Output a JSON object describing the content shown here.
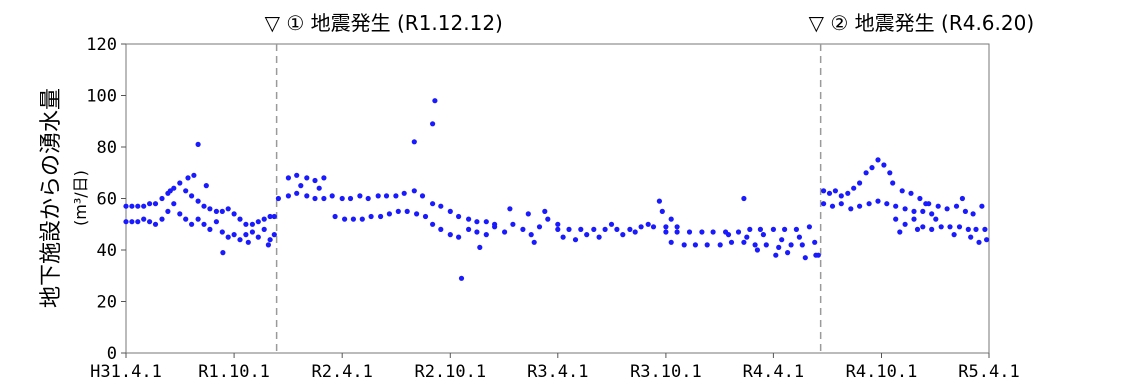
{
  "chart_data": {
    "type": "scatter",
    "title": "",
    "xlabel": "",
    "ylabel": "地下施設からの湧水量",
    "yunit": "(m³/日)",
    "ylim": [
      0,
      120
    ],
    "yticks": [
      0,
      20,
      40,
      60,
      80,
      100,
      120
    ],
    "x_range": [
      "2019-04-01",
      "2023-04-01"
    ],
    "xticks": [
      {
        "date": "2019-04-01",
        "label": "H31.4.1"
      },
      {
        "date": "2019-10-01",
        "label": "R1.10.1"
      },
      {
        "date": "2020-04-01",
        "label": "R2.4.1"
      },
      {
        "date": "2020-10-01",
        "label": "R2.10.1"
      },
      {
        "date": "2021-04-01",
        "label": "R3.4.1"
      },
      {
        "date": "2021-10-01",
        "label": "R3.10.1"
      },
      {
        "date": "2022-04-01",
        "label": "R4.4.1"
      },
      {
        "date": "2022-10-01",
        "label": "R4.10.1"
      },
      {
        "date": "2023-04-01",
        "label": "R5.4.1"
      }
    ],
    "grid": false,
    "legend": "none",
    "marker_color": "#1a1aff",
    "annotations": [
      {
        "date": "2019-12-12",
        "label": "▽ ① 地震発生 (R1.12.12)"
      },
      {
        "date": "2022-06-20",
        "label": "▽ ② 地震発生 (R4.6.20)"
      }
    ],
    "series": [
      {
        "points": [
          [
            "2019-04-01",
            57
          ],
          [
            "2019-04-11",
            57
          ],
          [
            "2019-04-21",
            57
          ],
          [
            "2019-05-01",
            57
          ],
          [
            "2019-05-11",
            58
          ],
          [
            "2019-05-21",
            58
          ],
          [
            "2019-06-01",
            60
          ],
          [
            "2019-06-11",
            62
          ],
          [
            "2019-06-21",
            64
          ],
          [
            "2019-07-01",
            66
          ],
          [
            "2019-07-11",
            63
          ],
          [
            "2019-07-21",
            61
          ],
          [
            "2019-08-01",
            59
          ],
          [
            "2019-08-11",
            57
          ],
          [
            "2019-08-21",
            56
          ],
          [
            "2019-09-01",
            55
          ],
          [
            "2019-09-11",
            55
          ],
          [
            "2019-09-21",
            56
          ],
          [
            "2019-10-01",
            54
          ],
          [
            "2019-10-11",
            52
          ],
          [
            "2019-10-21",
            50
          ],
          [
            "2019-11-01",
            50
          ],
          [
            "2019-11-11",
            51
          ],
          [
            "2019-11-21",
            52
          ],
          [
            "2019-12-01",
            53
          ],
          [
            "2019-12-08",
            53
          ],
          [
            "2019-04-01",
            51
          ],
          [
            "2019-04-11",
            51
          ],
          [
            "2019-04-21",
            51
          ],
          [
            "2019-05-01",
            52
          ],
          [
            "2019-05-11",
            51
          ],
          [
            "2019-05-21",
            50
          ],
          [
            "2019-06-01",
            52
          ],
          [
            "2019-06-11",
            55
          ],
          [
            "2019-06-21",
            58
          ],
          [
            "2019-07-01",
            54
          ],
          [
            "2019-07-11",
            52
          ],
          [
            "2019-07-21",
            50
          ],
          [
            "2019-08-01",
            52
          ],
          [
            "2019-08-11",
            50
          ],
          [
            "2019-08-21",
            48
          ],
          [
            "2019-09-01",
            51
          ],
          [
            "2019-09-11",
            47
          ],
          [
            "2019-09-21",
            45
          ],
          [
            "2019-10-01",
            46
          ],
          [
            "2019-10-11",
            44
          ],
          [
            "2019-10-21",
            46
          ],
          [
            "2019-11-01",
            47
          ],
          [
            "2019-11-11",
            45
          ],
          [
            "2019-11-21",
            48
          ],
          [
            "2019-12-01",
            44
          ],
          [
            "2019-12-08",
            46
          ],
          [
            "2019-07-15",
            68
          ],
          [
            "2019-08-15",
            65
          ],
          [
            "2019-09-12",
            39
          ],
          [
            "2019-08-01",
            81
          ],
          [
            "2019-06-15",
            63
          ],
          [
            "2019-07-25",
            69
          ],
          [
            "2019-10-25",
            43
          ],
          [
            "2019-11-28",
            42
          ],
          [
            "2019-12-15",
            60
          ],
          [
            "2020-01-01",
            61
          ],
          [
            "2020-01-15",
            62
          ],
          [
            "2020-02-01",
            61
          ],
          [
            "2020-02-15",
            60
          ],
          [
            "2020-03-01",
            60
          ],
          [
            "2020-03-15",
            61
          ],
          [
            "2020-04-01",
            60
          ],
          [
            "2020-04-15",
            60
          ],
          [
            "2020-05-01",
            61
          ],
          [
            "2020-05-15",
            60
          ],
          [
            "2020-06-01",
            61
          ],
          [
            "2020-06-15",
            61
          ],
          [
            "2020-07-01",
            61
          ],
          [
            "2020-07-15",
            62
          ],
          [
            "2020-08-01",
            63
          ],
          [
            "2020-08-15",
            61
          ],
          [
            "2020-01-01",
            68
          ],
          [
            "2020-01-15",
            69
          ],
          [
            "2020-02-01",
            68
          ],
          [
            "2020-02-15",
            67
          ],
          [
            "2020-03-01",
            68
          ],
          [
            "2020-01-22",
            65
          ],
          [
            "2020-02-22",
            64
          ],
          [
            "2020-03-20",
            53
          ],
          [
            "2020-04-05",
            52
          ],
          [
            "2020-04-20",
            52
          ],
          [
            "2020-05-05",
            52
          ],
          [
            "2020-05-20",
            53
          ],
          [
            "2020-06-05",
            53
          ],
          [
            "2020-06-20",
            54
          ],
          [
            "2020-07-05",
            55
          ],
          [
            "2020-07-20",
            55
          ],
          [
            "2020-08-05",
            54
          ],
          [
            "2020-08-20",
            53
          ],
          [
            "2020-08-01",
            82
          ],
          [
            "2020-09-01",
            89
          ],
          [
            "2020-09-05",
            98
          ],
          [
            "2020-10-20",
            29
          ],
          [
            "2020-09-01",
            58
          ],
          [
            "2020-09-15",
            57
          ],
          [
            "2020-10-01",
            55
          ],
          [
            "2020-10-15",
            53
          ],
          [
            "2020-11-01",
            52
          ],
          [
            "2020-11-15",
            51
          ],
          [
            "2020-12-01",
            51
          ],
          [
            "2020-12-15",
            50
          ],
          [
            "2020-09-01",
            50
          ],
          [
            "2020-09-15",
            48
          ],
          [
            "2020-10-01",
            46
          ],
          [
            "2020-10-15",
            45
          ],
          [
            "2020-11-01",
            48
          ],
          [
            "2020-11-15",
            47
          ],
          [
            "2020-12-01",
            46
          ],
          [
            "2020-12-15",
            49
          ],
          [
            "2021-01-01",
            47
          ],
          [
            "2021-01-15",
            50
          ],
          [
            "2021-02-01",
            48
          ],
          [
            "2021-02-15",
            46
          ],
          [
            "2021-03-01",
            49
          ],
          [
            "2021-03-15",
            52
          ],
          [
            "2021-04-01",
            50
          ],
          [
            "2021-01-10",
            56
          ],
          [
            "2021-02-10",
            54
          ],
          [
            "2021-03-10",
            55
          ],
          [
            "2020-11-20",
            41
          ],
          [
            "2021-02-20",
            43
          ],
          [
            "2021-04-01",
            48
          ],
          [
            "2021-04-20",
            48
          ],
          [
            "2021-05-10",
            48
          ],
          [
            "2021-06-01",
            48
          ],
          [
            "2021-06-20",
            48
          ],
          [
            "2021-07-10",
            48
          ],
          [
            "2021-08-01",
            48
          ],
          [
            "2021-08-20",
            49
          ],
          [
            "2021-09-10",
            49
          ],
          [
            "2021-10-01",
            49
          ],
          [
            "2021-10-20",
            49
          ],
          [
            "2021-04-10",
            45
          ],
          [
            "2021-05-01",
            44
          ],
          [
            "2021-05-20",
            46
          ],
          [
            "2021-06-10",
            45
          ],
          [
            "2021-07-01",
            50
          ],
          [
            "2021-07-20",
            46
          ],
          [
            "2021-08-10",
            47
          ],
          [
            "2021-09-01",
            50
          ],
          [
            "2021-09-20",
            59
          ],
          [
            "2021-09-25",
            55
          ],
          [
            "2021-10-10",
            52
          ],
          [
            "2021-10-01",
            47
          ],
          [
            "2021-10-20",
            47
          ],
          [
            "2021-11-10",
            47
          ],
          [
            "2021-12-01",
            47
          ],
          [
            "2021-12-20",
            47
          ],
          [
            "2022-01-10",
            47
          ],
          [
            "2022-02-01",
            47
          ],
          [
            "2022-02-20",
            48
          ],
          [
            "2022-03-10",
            48
          ],
          [
            "2022-04-01",
            48
          ],
          [
            "2022-04-20",
            48
          ],
          [
            "2022-05-10",
            48
          ],
          [
            "2022-06-01",
            49
          ],
          [
            "2021-10-10",
            43
          ],
          [
            "2021-11-01",
            42
          ],
          [
            "2021-11-20",
            42
          ],
          [
            "2021-12-10",
            42
          ],
          [
            "2022-01-01",
            42
          ],
          [
            "2022-01-20",
            43
          ],
          [
            "2022-02-10",
            43
          ],
          [
            "2022-03-01",
            42
          ],
          [
            "2022-03-20",
            42
          ],
          [
            "2022-04-10",
            41
          ],
          [
            "2022-05-01",
            42
          ],
          [
            "2022-05-20",
            42
          ],
          [
            "2022-06-10",
            43
          ],
          [
            "2022-01-15",
            46
          ],
          [
            "2022-02-15",
            45
          ],
          [
            "2022-03-15",
            46
          ],
          [
            "2022-04-15",
            44
          ],
          [
            "2022-05-15",
            45
          ],
          [
            "2022-02-10",
            60
          ],
          [
            "2022-03-05",
            40
          ],
          [
            "2022-04-05",
            38
          ],
          [
            "2022-04-25",
            39
          ],
          [
            "2022-05-25",
            37
          ],
          [
            "2022-06-12",
            38
          ],
          [
            "2022-06-16",
            38
          ],
          [
            "2022-06-25",
            63
          ],
          [
            "2022-07-05",
            62
          ],
          [
            "2022-07-15",
            63
          ],
          [
            "2022-07-25",
            61
          ],
          [
            "2022-08-05",
            62
          ],
          [
            "2022-08-15",
            64
          ],
          [
            "2022-08-25",
            66
          ],
          [
            "2022-09-05",
            70
          ],
          [
            "2022-09-15",
            72
          ],
          [
            "2022-09-25",
            75
          ],
          [
            "2022-10-05",
            73
          ],
          [
            "2022-10-15",
            70
          ],
          [
            "2022-06-25",
            58
          ],
          [
            "2022-07-10",
            57
          ],
          [
            "2022-07-25",
            58
          ],
          [
            "2022-08-10",
            56
          ],
          [
            "2022-08-25",
            57
          ],
          [
            "2022-09-10",
            58
          ],
          [
            "2022-09-25",
            59
          ],
          [
            "2022-10-10",
            58
          ],
          [
            "2022-10-25",
            57
          ],
          [
            "2022-11-10",
            56
          ],
          [
            "2022-11-25",
            55
          ],
          [
            "2022-12-10",
            55
          ],
          [
            "2022-12-25",
            54
          ],
          [
            "2022-10-20",
            66
          ],
          [
            "2022-11-05",
            63
          ],
          [
            "2022-11-20",
            62
          ],
          [
            "2022-12-05",
            60
          ],
          [
            "2022-12-20",
            58
          ],
          [
            "2023-01-05",
            57
          ],
          [
            "2023-01-20",
            56
          ],
          [
            "2023-02-05",
            57
          ],
          [
            "2023-02-20",
            55
          ],
          [
            "2023-03-05",
            54
          ],
          [
            "2023-03-20",
            57
          ],
          [
            "2022-10-25",
            52
          ],
          [
            "2022-11-10",
            50
          ],
          [
            "2022-11-25",
            52
          ],
          [
            "2022-12-10",
            49
          ],
          [
            "2022-12-25",
            48
          ],
          [
            "2023-01-10",
            49
          ],
          [
            "2023-01-25",
            49
          ],
          [
            "2023-02-10",
            49
          ],
          [
            "2023-02-25",
            48
          ],
          [
            "2023-03-10",
            48
          ],
          [
            "2023-03-25",
            48
          ],
          [
            "2022-11-01",
            47
          ],
          [
            "2022-12-01",
            48
          ],
          [
            "2023-01-01",
            52
          ],
          [
            "2023-02-01",
            46
          ],
          [
            "2023-03-01",
            45
          ],
          [
            "2023-03-15",
            43
          ],
          [
            "2023-03-28",
            44
          ],
          [
            "2022-12-15",
            58
          ],
          [
            "2023-02-15",
            60
          ]
        ]
      }
    ]
  }
}
